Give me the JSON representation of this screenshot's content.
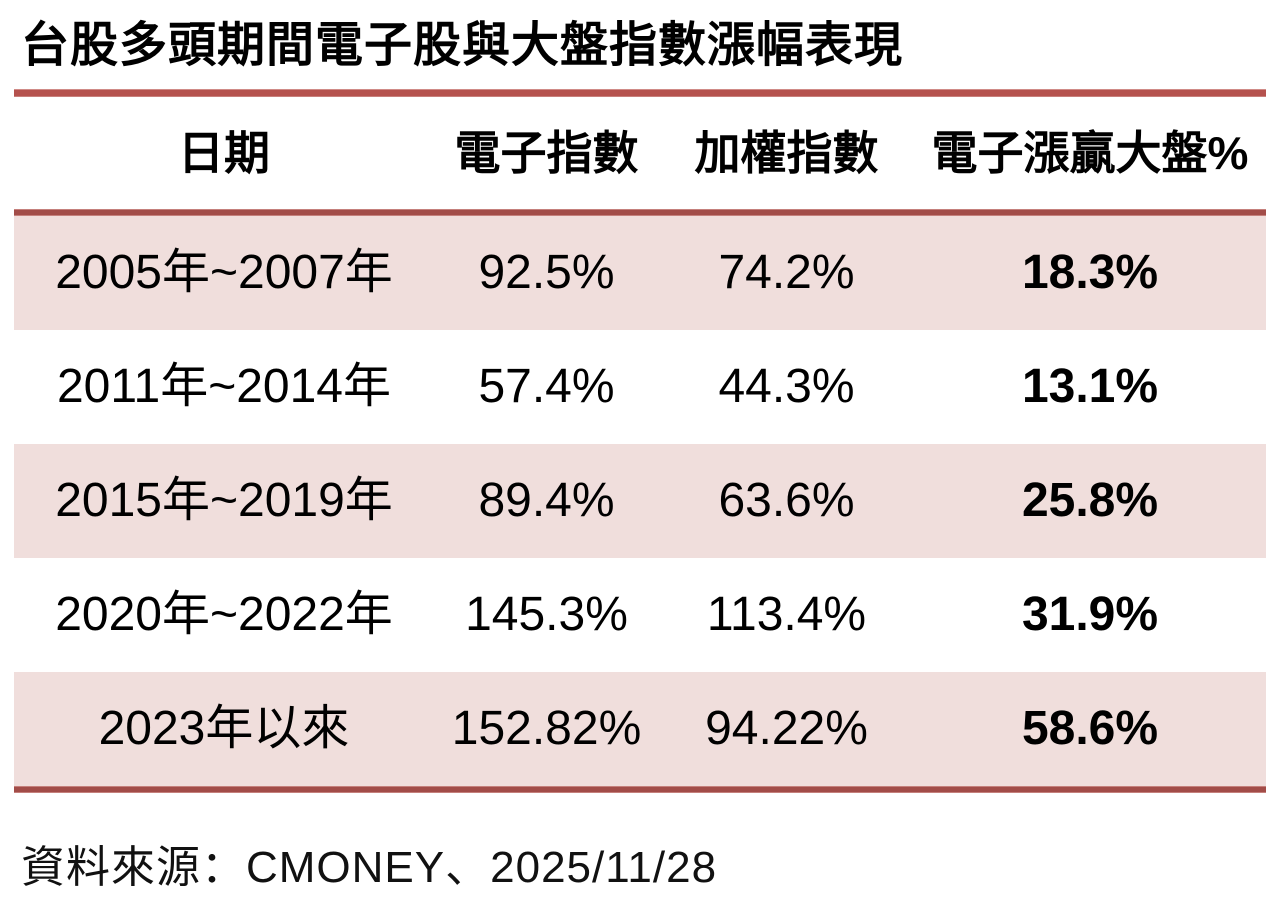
{
  "title": "台股多頭期間電子股與大盤指數漲幅表現",
  "table": {
    "columns": [
      "日期",
      "電子指數",
      "加權指數",
      "電子漲贏大盤%"
    ],
    "rows": [
      {
        "period": "2005年~2007年",
        "electronics": "92.5%",
        "weighted": "74.2%",
        "outperform": "18.3%"
      },
      {
        "period": "2011年~2014年",
        "electronics": "57.4%",
        "weighted": "44.3%",
        "outperform": "13.1%"
      },
      {
        "period": "2015年~2019年",
        "electronics": "89.4%",
        "weighted": "63.6%",
        "outperform": "25.8%"
      },
      {
        "period": "2020年~2022年",
        "electronics": "145.3%",
        "weighted": "113.4%",
        "outperform": "31.9%"
      },
      {
        "period": "2023年以來",
        "electronics": "152.82%",
        "weighted": "94.22%",
        "outperform": "58.6%"
      }
    ]
  },
  "source": {
    "text": "資料來源：CMONEY、2025/11/28"
  },
  "colors": {
    "accent_line": "#b5524e",
    "divider_line": "#a24c48",
    "row_highlight": "#f0dedc",
    "text": "#000000"
  },
  "chart_data": {
    "type": "table",
    "title": "台股多頭期間電子股與大盤指數漲幅表現",
    "columns": [
      "日期",
      "電子指數",
      "加權指數",
      "電子漲贏大盤%"
    ],
    "categories": [
      "2005年~2007年",
      "2011年~2014年",
      "2015年~2019年",
      "2020年~2022年",
      "2023年以來"
    ],
    "series": [
      {
        "name": "電子指數",
        "values": [
          92.5,
          57.4,
          89.4,
          145.3,
          152.82
        ],
        "unit": "%"
      },
      {
        "name": "加權指數",
        "values": [
          74.2,
          44.3,
          63.6,
          113.4,
          94.22
        ],
        "unit": "%"
      },
      {
        "name": "電子漲贏大盤%",
        "values": [
          18.3,
          13.1,
          25.8,
          31.9,
          58.6
        ],
        "unit": "%"
      }
    ],
    "source_note": "資料來源：CMONEY、2025/11/28",
    "layout_hints": {
      "highlighted_rows": [
        0,
        2,
        4
      ],
      "last_column_bold": true
    }
  }
}
